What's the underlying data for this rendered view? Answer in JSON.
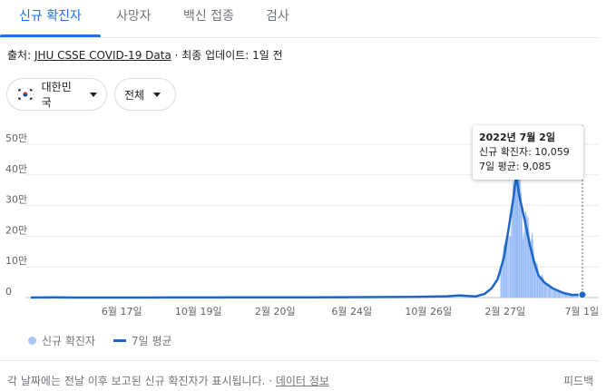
{
  "tabs": [
    {
      "label": "신규 확진자",
      "active": true
    },
    {
      "label": "사망자",
      "active": false
    },
    {
      "label": "백신 접종",
      "active": false
    },
    {
      "label": "검사",
      "active": false
    }
  ],
  "source": {
    "prefix": "출처: ",
    "link": "JHU CSSE COVID-19 Data",
    "suffix": " · 최종 업데이트: 1일 전"
  },
  "filters": {
    "country": "대한민국",
    "scope": "전체"
  },
  "tooltip": {
    "date": "2022년 7월 2일",
    "cases_label": "신규 확진자: 10,059",
    "avg_label": "7일 평균: 9,085"
  },
  "legend": {
    "cases": "신규 확진자",
    "average": "7일 평균"
  },
  "footer": {
    "note": "각 날짜에는 전날 이후 보고된 신규 확진자가 표시됩니다. · ",
    "data_info": "데이터 정보",
    "feedback": "피드백"
  },
  "colors": {
    "accent": "#1a73e8",
    "bars": "#a8c7fa",
    "line": "#1a66c9"
  },
  "chart_data": {
    "type": "area",
    "series": [
      {
        "name": "신규 확진자"
      },
      {
        "name": "7일 평균"
      }
    ],
    "y_ticks": [
      "0",
      "10만",
      "20만",
      "30만",
      "40만",
      "50만"
    ],
    "ylim": [
      0,
      500000
    ],
    "x_ticks": [
      "6월 17일",
      "10월 19일",
      "2월 20일",
      "6월 24일",
      "10월 26일",
      "2월 27일",
      "7월 1일"
    ],
    "x_tick_dates": [
      "2020-06-17",
      "2020-10-19",
      "2021-02-20",
      "2021-06-24",
      "2021-10-26",
      "2022-02-27",
      "2022-07-01"
    ],
    "x_range": [
      "2020-01-22",
      "2022-07-02"
    ],
    "points_7day_avg": [
      [
        "2020-01-22",
        0
      ],
      [
        "2020-03-01",
        600
      ],
      [
        "2020-04-01",
        100
      ],
      [
        "2020-08-01",
        40
      ],
      [
        "2020-08-28",
        330
      ],
      [
        "2020-11-15",
        200
      ],
      [
        "2020-12-20",
        1000
      ],
      [
        "2021-01-20",
        450
      ],
      [
        "2021-04-15",
        650
      ],
      [
        "2021-07-25",
        1600
      ],
      [
        "2021-10-01",
        2400
      ],
      [
        "2021-11-25",
        4000
      ],
      [
        "2021-12-15",
        7000
      ],
      [
        "2022-01-10",
        3500
      ],
      [
        "2022-01-25",
        12000
      ],
      [
        "2022-02-05",
        30000
      ],
      [
        "2022-02-15",
        60000
      ],
      [
        "2022-02-25",
        130000
      ],
      [
        "2022-03-05",
        230000
      ],
      [
        "2022-03-12",
        320000
      ],
      [
        "2022-03-17",
        400000
      ],
      [
        "2022-03-22",
        330000
      ],
      [
        "2022-03-31",
        250000
      ],
      [
        "2022-04-08",
        170000
      ],
      [
        "2022-04-15",
        115000
      ],
      [
        "2022-04-22",
        72000
      ],
      [
        "2022-05-01",
        50000
      ],
      [
        "2022-05-15",
        30000
      ],
      [
        "2022-06-01",
        15000
      ],
      [
        "2022-06-15",
        8500
      ],
      [
        "2022-07-02",
        9085
      ]
    ],
    "daily_cases": [
      [
        "2022-02-20",
        95000
      ],
      [
        "2022-02-25",
        170000
      ],
      [
        "2022-03-01",
        200000
      ],
      [
        "2022-03-08",
        200000
      ],
      [
        "2022-03-12",
        380000
      ],
      [
        "2022-03-15",
        350000
      ],
      [
        "2022-03-17",
        620000
      ],
      [
        "2022-03-19",
        380000
      ],
      [
        "2022-03-22",
        490000
      ],
      [
        "2022-03-25",
        340000
      ],
      [
        "2022-03-28",
        190000
      ],
      [
        "2022-04-01",
        280000
      ],
      [
        "2022-04-05",
        260000
      ],
      [
        "2022-04-09",
        180000
      ],
      [
        "2022-04-12",
        210000
      ],
      [
        "2022-04-16",
        120000
      ],
      [
        "2022-04-20",
        110000
      ],
      [
        "2022-04-24",
        60000
      ],
      [
        "2022-04-28",
        75000
      ],
      [
        "2022-05-03",
        50000
      ],
      [
        "2022-05-10",
        40000
      ],
      [
        "2022-05-18",
        28000
      ],
      [
        "2022-05-25",
        20000
      ],
      [
        "2022-06-05",
        12000
      ],
      [
        "2022-06-15",
        9000
      ],
      [
        "2022-06-25",
        7000
      ],
      [
        "2022-07-02",
        10059
      ]
    ],
    "highlight_date": "2022-07-02",
    "highlight_values": {
      "cases": 10059,
      "average": 9085
    },
    "grid": true
  }
}
